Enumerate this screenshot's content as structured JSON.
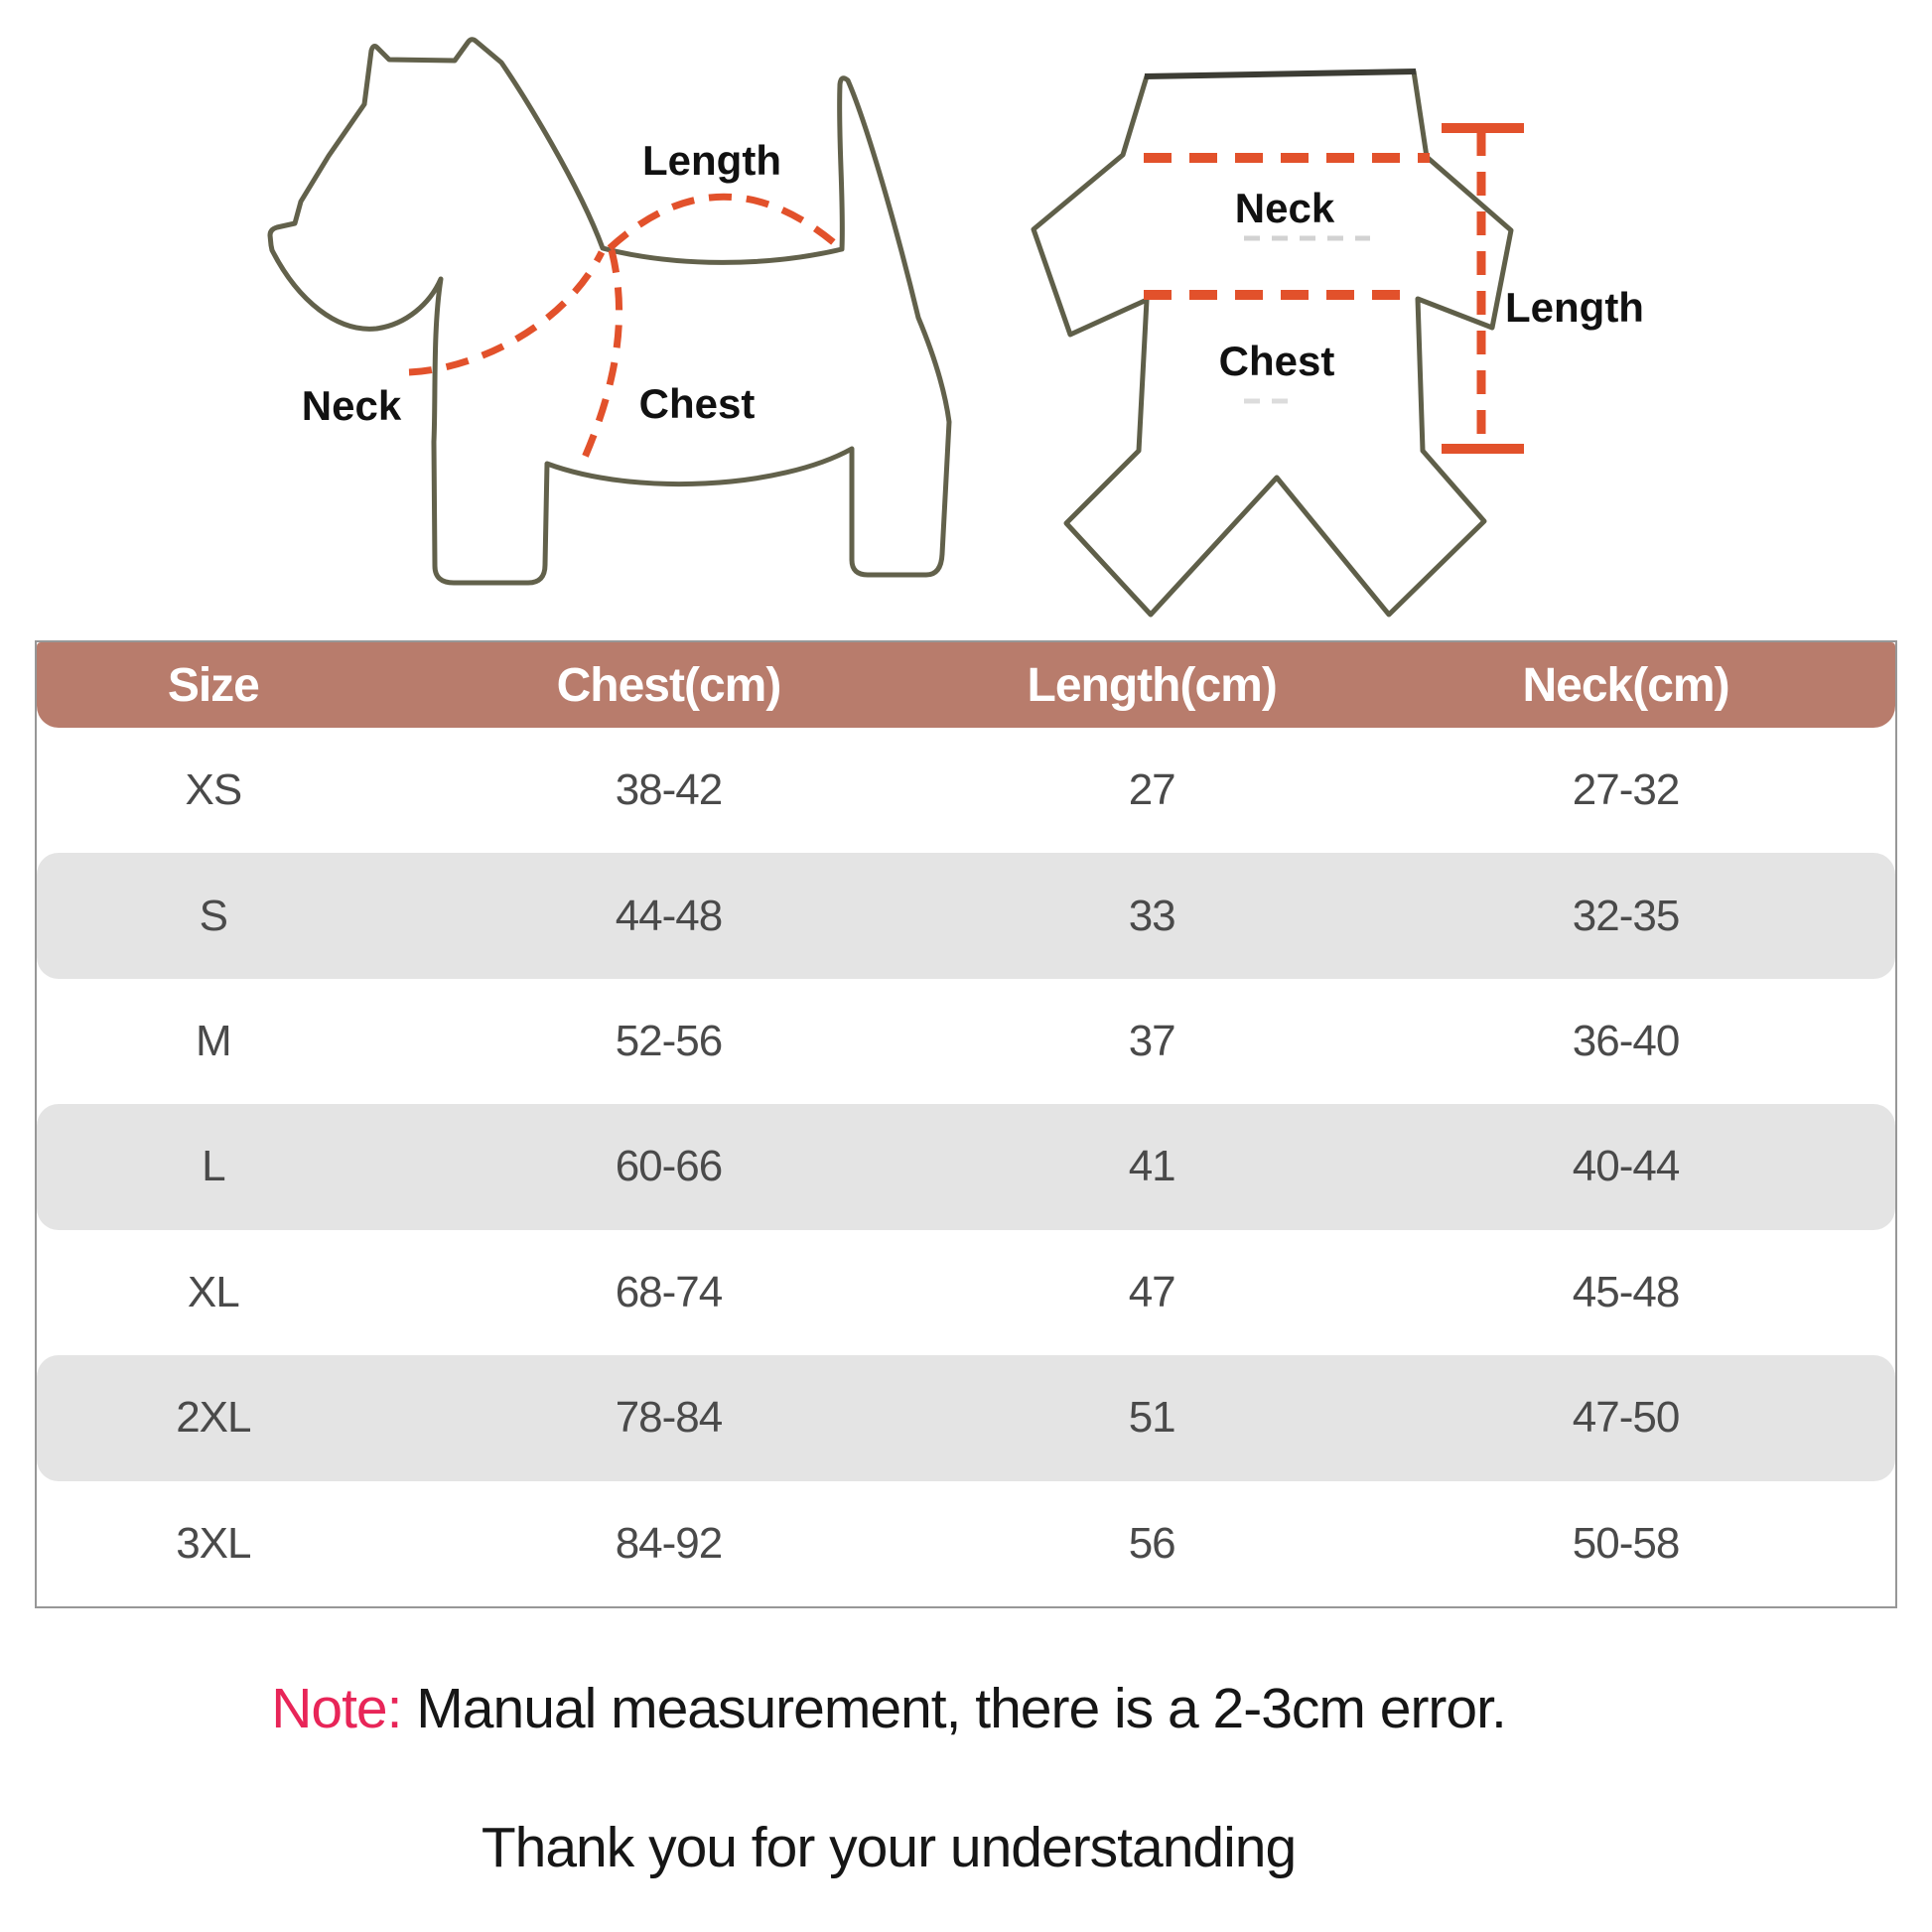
{
  "diagram": {
    "dog": {
      "length_label": "Length",
      "neck_label": "Neck",
      "chest_label": "Chest"
    },
    "garment": {
      "neck_label": "Neck",
      "chest_label": "Chest",
      "length_label": "Length"
    },
    "colors": {
      "outline": "#62614b",
      "dash": "#e2512b",
      "label_text": "#111111"
    }
  },
  "table": {
    "headers": [
      "Size",
      "Chest(cm)",
      "Length(cm)",
      "Neck(cm)"
    ],
    "rows": [
      [
        "XS",
        "38-42",
        "27",
        "27-32"
      ],
      [
        "S",
        "44-48",
        "33",
        "32-35"
      ],
      [
        "M",
        "52-56",
        "37",
        "36-40"
      ],
      [
        "L",
        "60-66",
        "41",
        "40-44"
      ],
      [
        "XL",
        "68-74",
        "47",
        "45-48"
      ],
      [
        "2XL",
        "78-84",
        "51",
        "47-50"
      ],
      [
        "3XL",
        "84-92",
        "56",
        "50-58"
      ]
    ],
    "colors": {
      "header_bg": "#b87c6c",
      "header_text": "#ffffff",
      "alt_row_bg": "#e4e4e4",
      "body_text": "#4a4a4a",
      "border": "#979797"
    }
  },
  "note": {
    "prefix": "Note:",
    "line1_rest": " Manual measurement, there is a 2-3cm error.",
    "line2": "Thank you for your understanding",
    "prefix_color": "#e82558"
  },
  "chart_data": {
    "type": "table",
    "columns": [
      "Size",
      "Chest(cm)",
      "Length(cm)",
      "Neck(cm)"
    ],
    "rows": [
      {
        "size": "XS",
        "chest_cm": "38-42",
        "length_cm": "27",
        "neck_cm": "27-32"
      },
      {
        "size": "S",
        "chest_cm": "44-48",
        "length_cm": "33",
        "neck_cm": "32-35"
      },
      {
        "size": "M",
        "chest_cm": "52-56",
        "length_cm": "37",
        "neck_cm": "36-40"
      },
      {
        "size": "L",
        "chest_cm": "60-66",
        "length_cm": "41",
        "neck_cm": "40-44"
      },
      {
        "size": "XL",
        "chest_cm": "68-74",
        "length_cm": "47",
        "neck_cm": "45-48"
      },
      {
        "size": "2XL",
        "chest_cm": "78-84",
        "length_cm": "51",
        "neck_cm": "47-50"
      },
      {
        "size": "3XL",
        "chest_cm": "84-92",
        "length_cm": "56",
        "neck_cm": "50-58"
      }
    ],
    "annotations": [
      "Note: Manual measurement, there is a 2-3cm error.",
      "Thank you for your understanding"
    ],
    "legend_position": "none",
    "grid": false
  }
}
